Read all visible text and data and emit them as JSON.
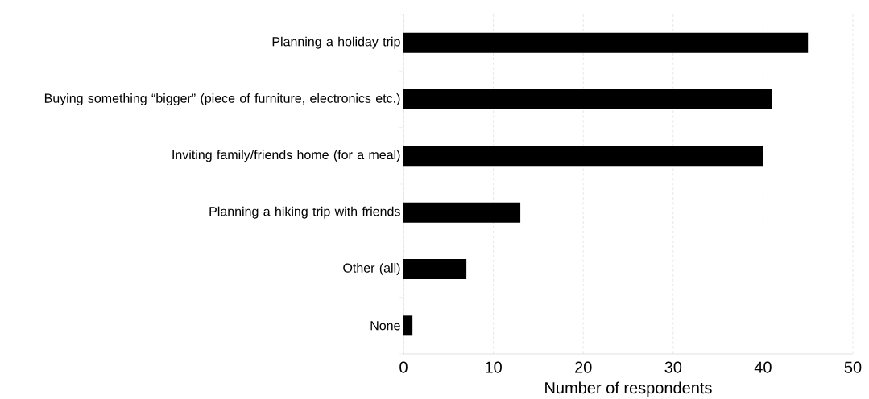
{
  "chart_data": {
    "type": "bar",
    "orientation": "horizontal",
    "xlabel": "Number of respondents",
    "categories": [
      "Planning a holiday trip",
      "Buying something “bigger” (piece of furniture, electronics etc.)",
      "Inviting family/friends home (for a meal)",
      "Planning a hiking trip with friends",
      "Other (all)",
      "None"
    ],
    "values": [
      45,
      41,
      40,
      13,
      7,
      1
    ],
    "color": "#000000",
    "xlim": [
      0,
      50
    ],
    "xticks": [
      0,
      10,
      20,
      30,
      40,
      50
    ],
    "grid": "x"
  }
}
